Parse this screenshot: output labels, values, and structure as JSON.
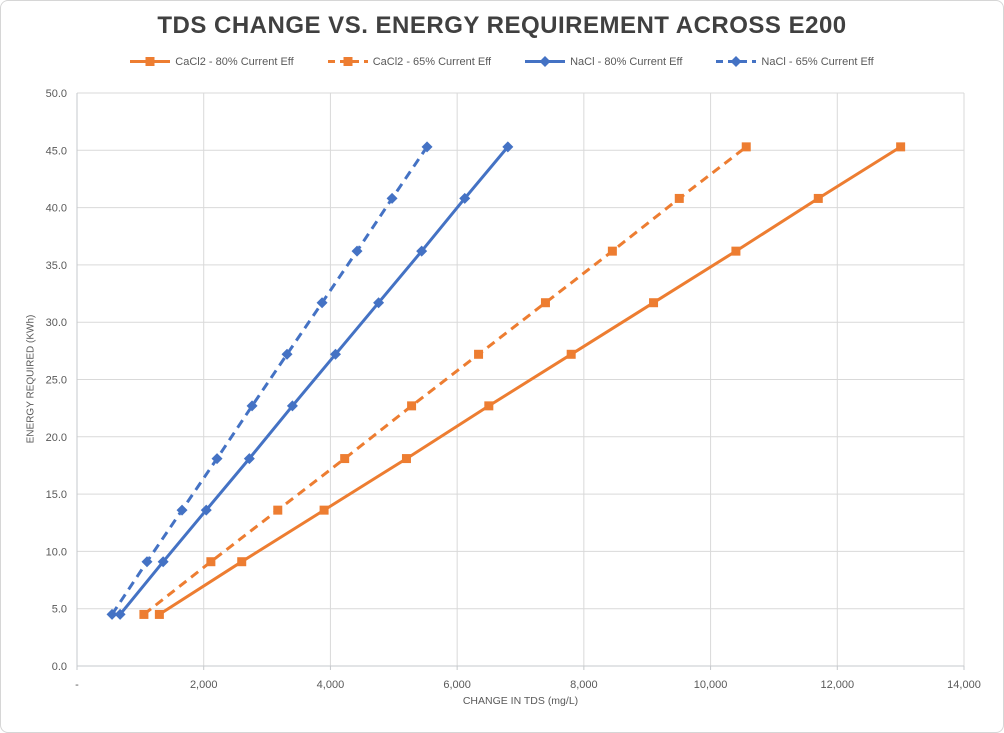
{
  "chart_data": {
    "type": "line",
    "title": "TDS CHANGE VS. ENERGY REQUIREMENT ACROSS E200",
    "xlabel": "CHANGE IN TDS (mg/L)",
    "ylabel": "ENERGY REQUIRED (KWh)",
    "xlim": [
      0,
      14000
    ],
    "ylim": [
      0,
      50
    ],
    "x_ticks": [
      0,
      2000,
      4000,
      6000,
      8000,
      10000,
      12000,
      14000
    ],
    "x_tick_labels": [
      "-",
      "2,000",
      "4,000",
      "6,000",
      "8,000",
      "10,000",
      "12,000",
      "14,000"
    ],
    "y_ticks": [
      0,
      5,
      10,
      15,
      20,
      25,
      30,
      35,
      40,
      45,
      50
    ],
    "y_tick_labels": [
      "0.0",
      "5.0",
      "10.0",
      "15.0",
      "20.0",
      "25.0",
      "30.0",
      "35.0",
      "40.0",
      "45.0",
      "50.0"
    ],
    "grid": true,
    "legend_position": "top",
    "series": [
      {
        "name": "CaCl2 - 80% Current Eff",
        "color": "#ED7D31",
        "line_style": "solid",
        "marker": "square",
        "x": [
          1300,
          2600,
          3900,
          5200,
          6500,
          7800,
          9100,
          10400,
          11700,
          13000
        ],
        "y": [
          4.5,
          9.1,
          13.6,
          18.1,
          22.7,
          27.2,
          31.7,
          36.2,
          40.8,
          45.3
        ]
      },
      {
        "name": "CaCl2 - 65% Current Eff",
        "color": "#ED7D31",
        "line_style": "dashed",
        "marker": "square",
        "x": [
          1056,
          2113,
          3169,
          4225,
          5281,
          6338,
          7394,
          8450,
          9506,
          10563
        ],
        "y": [
          4.5,
          9.1,
          13.6,
          18.1,
          22.7,
          27.2,
          31.7,
          36.2,
          40.8,
          45.3
        ]
      },
      {
        "name": "NaCl - 80% Current Eff",
        "color": "#4472C4",
        "line_style": "solid",
        "marker": "diamond",
        "x": [
          680,
          1360,
          2040,
          2720,
          3400,
          4080,
          4760,
          5440,
          6120,
          6800
        ],
        "y": [
          4.5,
          9.1,
          13.6,
          18.1,
          22.7,
          27.2,
          31.7,
          36.2,
          40.8,
          45.3
        ]
      },
      {
        "name": "NaCl - 65% Current Eff",
        "color": "#4472C4",
        "line_style": "dashed",
        "marker": "diamond",
        "x": [
          553,
          1105,
          1658,
          2210,
          2763,
          3315,
          3868,
          4420,
          4973,
          5525
        ],
        "y": [
          4.5,
          9.1,
          13.6,
          18.1,
          22.7,
          27.2,
          31.7,
          36.2,
          40.8,
          45.3
        ]
      }
    ]
  },
  "colors": {
    "gridline": "#D9D9D9",
    "axis_line": "#C6C9CC",
    "tick_text": "#595959",
    "title_text": "#404040"
  }
}
